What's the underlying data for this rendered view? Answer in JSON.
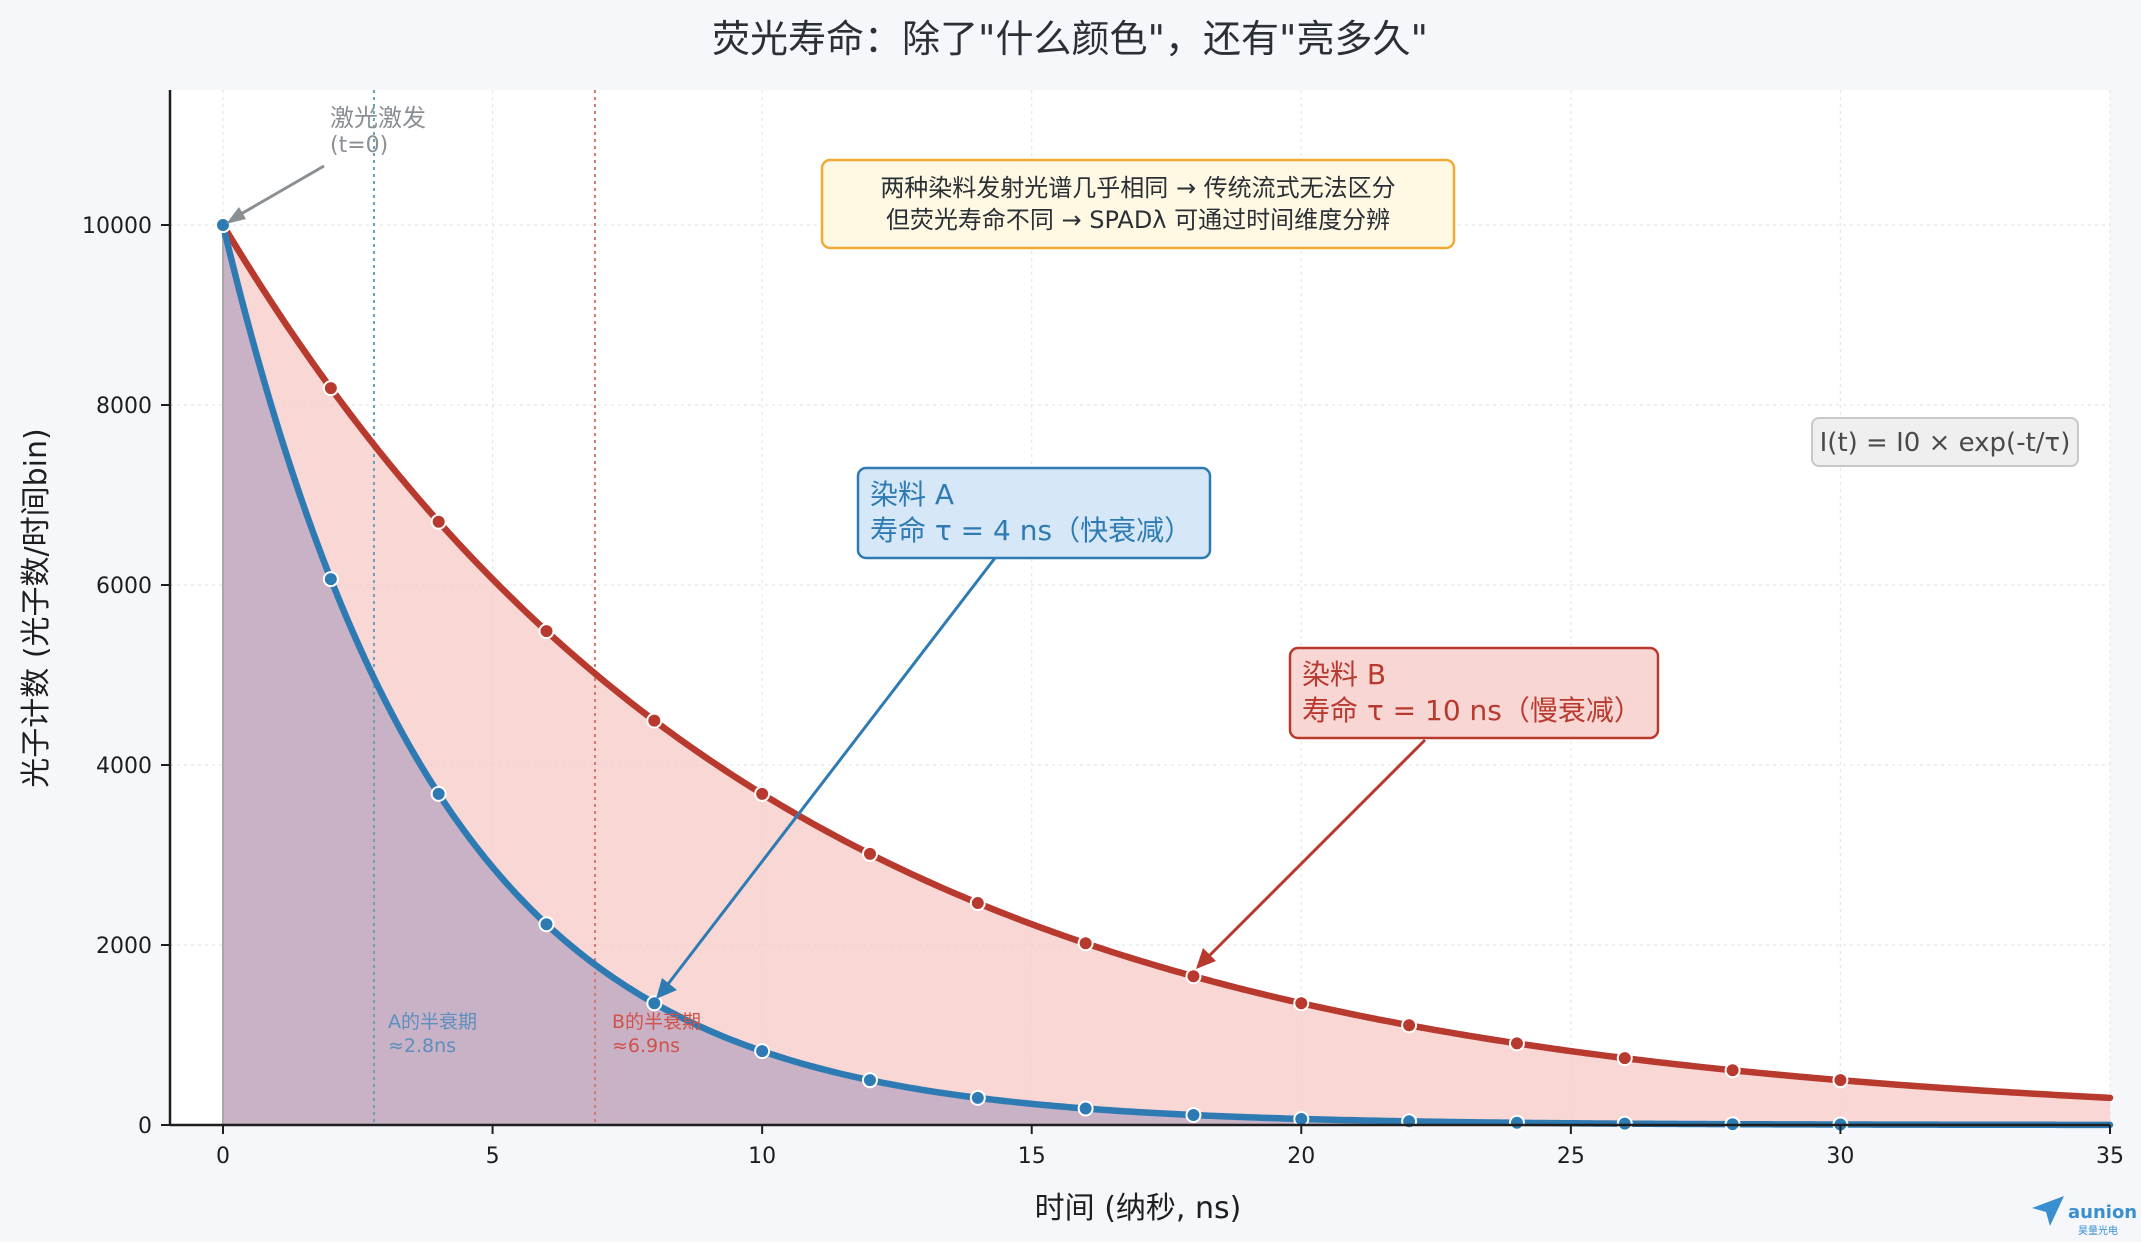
{
  "chart_data": {
    "type": "line",
    "title": "荧光寿命：除了\"什么颜色\"，还有\"亮多久\"",
    "xlabel": "时间 (纳秒, ns)",
    "ylabel": "光子计数 (光子数/时间bin)",
    "xlim": [
      0,
      35
    ],
    "ylim": [
      0,
      11500
    ],
    "xticks": [
      0,
      5,
      10,
      15,
      20,
      25,
      30,
      35
    ],
    "yticks": [
      0,
      2000,
      4000,
      6000,
      8000,
      10000
    ],
    "grid": true,
    "series": [
      {
        "tau": 4,
        "color": "#2e7bb4",
        "fill": "#b9a6bf",
        "marker_x": [
          0,
          2,
          4,
          6,
          8,
          10,
          12,
          14,
          16,
          18,
          20,
          22,
          24,
          26,
          28,
          30
        ],
        "marker_y": [
          10000,
          6065,
          3679,
          2231,
          1353,
          821,
          498,
          302,
          183,
          111,
          67,
          41,
          25,
          15,
          9,
          6
        ]
      },
      {
        "tau": 10,
        "color": "#b83a2e",
        "fill": "#f6c9c7",
        "marker_x": [
          0,
          2,
          4,
          6,
          8,
          10,
          12,
          14,
          16,
          18,
          20,
          22,
          24,
          26,
          28,
          30
        ],
        "marker_y": [
          10000,
          8187,
          6703,
          5488,
          4493,
          3679,
          3012,
          2466,
          2019,
          1653,
          1353,
          1108,
          907,
          743,
          608,
          498
        ]
      }
    ],
    "vlines": [
      {
        "x": 0,
        "color": "#a9a9a9"
      },
      {
        "x": 2.8,
        "color": "#6aa0b8"
      },
      {
        "x": 6.9,
        "color": "#d47a72"
      }
    ],
    "annotations": {
      "excitation": {
        "line1": "激光激发",
        "line2": "(t=0)",
        "color": "#8a8f94"
      },
      "half_a": {
        "line1": "A的半衰期",
        "line2": "≈2.8ns",
        "color": "#5b8fc0"
      },
      "half_b": {
        "line1": "B的半衰期",
        "line2": "≈6.9ns",
        "color": "#d0524a"
      },
      "info": {
        "line1": "两种染料发射光谱几乎相同 → 传统流式无法区分",
        "line2": "但荧光寿命不同 → SPADλ 可通过时间维度分辨"
      },
      "formula": "I(t) = I0 × exp(-t/τ)",
      "dye_a": {
        "line1": "染料 A",
        "line2": "寿命 τ = 4 ns（快衰减）",
        "arrow_to": [
          8,
          1353
        ]
      },
      "dye_b": {
        "line1": "染料 B",
        "line2": "寿命 τ = 10 ns（慢衰减）",
        "arrow_to": [
          18,
          1653
        ]
      }
    }
  },
  "logo": {
    "text": "aunion",
    "subtext": "昊量光电",
    "color": "#3a8fd0"
  }
}
